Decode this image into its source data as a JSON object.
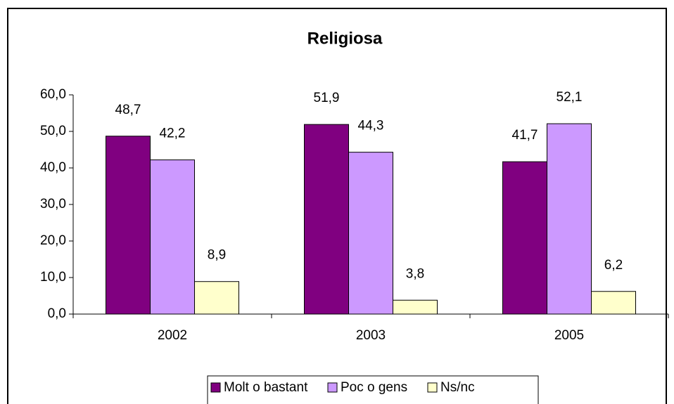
{
  "chart_data": {
    "type": "bar",
    "title": "Religiosa",
    "categories": [
      "2002",
      "2003",
      "2005"
    ],
    "series": [
      {
        "name": "Molt o bastant",
        "color": "#800080",
        "values": [
          48.7,
          51.9,
          41.7
        ],
        "value_labels": [
          "48,7",
          "51,9",
          "41,7"
        ]
      },
      {
        "name": "Poc o gens",
        "color": "#cc99ff",
        "values": [
          42.2,
          44.3,
          52.1
        ],
        "value_labels": [
          "42,2",
          "44,3",
          "52,1"
        ]
      },
      {
        "name": "Ns/nc",
        "color": "#ffffcc",
        "values": [
          8.9,
          3.8,
          6.2
        ],
        "value_labels": [
          "8,9",
          "3,8",
          "6,2"
        ]
      }
    ],
    "ylim": [
      0,
      60
    ],
    "yticks": [
      {
        "value": 0,
        "label": "0,0"
      },
      {
        "value": 10,
        "label": "10,0"
      },
      {
        "value": 20,
        "label": "20,0"
      },
      {
        "value": 30,
        "label": "30,0"
      },
      {
        "value": 40,
        "label": "40,0"
      },
      {
        "value": 50,
        "label": "50,0"
      },
      {
        "value": 60,
        "label": "60,0"
      }
    ],
    "legend": "bottom"
  }
}
